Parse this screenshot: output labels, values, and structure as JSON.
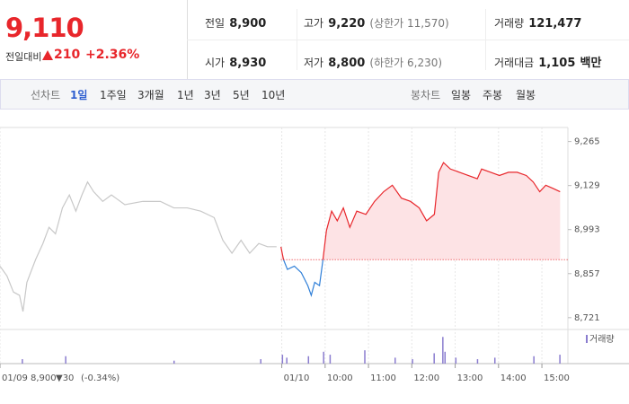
{
  "header": {
    "price": "9,110",
    "change_label": "전일대비",
    "change": "210",
    "change_rate": "+2.36%",
    "stats": [
      {
        "label": "전일",
        "value": "8,900"
      },
      {
        "label": "고가",
        "value": "9,220",
        "note": "(상한가 11,570)"
      },
      {
        "label": "거래량",
        "value": "121,477"
      },
      {
        "label": "시가",
        "value": "8,930"
      },
      {
        "label": "저가",
        "value": "8,800",
        "note": "(하한가 6,230)"
      },
      {
        "label": "거래대금",
        "value": "1,105",
        "unit": "백만"
      }
    ]
  },
  "tabs": {
    "line_chart": {
      "label": "선차트",
      "options": [
        "1일",
        "1주일",
        "3개월",
        "1년",
        "3년",
        "5년",
        "10년"
      ]
    },
    "candle_chart": {
      "label": "봉차트",
      "options": [
        "일봉",
        "주봉",
        "월봉"
      ]
    }
  },
  "status": {
    "price": "8,900",
    "change": "▼30",
    "rate": "(-0.34%)"
  },
  "chart_data": {
    "type": "line",
    "xlim": [
      0,
      13.1
    ],
    "ylim": [
      8690,
      9300
    ],
    "xticks": [
      {
        "value": 0,
        "label": "01/09"
      },
      {
        "value": 6.5,
        "label": "01/10"
      },
      {
        "value": 7.5,
        "label": "10:00"
      },
      {
        "value": 8.5,
        "label": "11:00"
      },
      {
        "value": 9.5,
        "label": "12:00"
      },
      {
        "value": 10.5,
        "label": "13:00"
      },
      {
        "value": 11.5,
        "label": "14:00"
      },
      {
        "value": 12.5,
        "label": "15:00"
      }
    ],
    "yticks": [
      {
        "value": 9265,
        "label": "9,265"
      },
      {
        "value": 9129,
        "label": "9,129"
      },
      {
        "value": 8993,
        "label": "8,993"
      },
      {
        "value": 8857,
        "label": "8,857"
      },
      {
        "value": 8721,
        "label": "8,721"
      }
    ],
    "reference": 8900,
    "reference_color": "#e8262b",
    "series": [
      {
        "color": "#c8c8c8",
        "x": [
          0,
          0.16,
          0.31,
          0.45,
          0.53,
          0.62,
          0.82,
          0.99,
          1.13,
          1.28,
          1.44,
          1.6,
          1.75,
          1.89,
          2.02,
          2.16,
          2.37,
          2.57,
          2.88,
          3.29,
          3.7,
          4.01,
          4.32,
          4.63,
          4.94,
          5.14,
          5.35,
          5.56,
          5.76,
          5.97,
          6.17,
          6.38
        ],
        "values": [
          8880,
          8850,
          8800,
          8790,
          8740,
          8830,
          8900,
          8950,
          9000,
          8980,
          9060,
          9100,
          9050,
          9100,
          9140,
          9110,
          9080,
          9100,
          9070,
          9080,
          9080,
          9060,
          9060,
          9050,
          9030,
          8960,
          8920,
          8960,
          8920,
          8950,
          8940,
          8940
        ]
      },
      {
        "color": "#e8262b",
        "down_color": "#2f7fd8",
        "fill": "#fde3e5",
        "x": [
          6.48,
          6.54,
          6.63,
          6.79,
          6.95,
          7.1,
          7.18,
          7.26,
          7.37,
          7.45,
          7.53,
          7.65,
          7.78,
          7.92,
          8.07,
          8.23,
          8.44,
          8.64,
          8.85,
          9.05,
          9.26,
          9.47,
          9.67,
          9.84,
          10.02,
          10.12,
          10.23,
          10.39,
          10.6,
          10.8,
          11.01,
          11.11,
          11.32,
          11.52,
          11.73,
          11.93,
          12.14,
          12.3,
          12.45,
          12.59,
          12.76,
          12.92
        ],
        "values": [
          8940,
          8900,
          8870,
          8880,
          8860,
          8820,
          8790,
          8830,
          8820,
          8900,
          8990,
          9050,
          9020,
          9060,
          9000,
          9050,
          9040,
          9080,
          9110,
          9130,
          9090,
          9080,
          9060,
          9020,
          9040,
          9170,
          9200,
          9180,
          9170,
          9160,
          9150,
          9180,
          9170,
          9160,
          9170,
          9170,
          9160,
          9140,
          9110,
          9130,
          9120,
          9110
        ]
      }
    ],
    "volume": {
      "name": "거래량",
      "color": "#8a7ccf",
      "vlim": [
        0,
        100
      ],
      "x": [
        0.5,
        1.5,
        4.0,
        6.0,
        6.5,
        6.6,
        7.1,
        7.45,
        7.6,
        8.4,
        9.1,
        9.5,
        10.0,
        10.2,
        10.25,
        10.5,
        11.0,
        11.4,
        12.3,
        12.9
      ],
      "values": [
        15,
        25,
        10,
        15,
        30,
        20,
        25,
        40,
        30,
        45,
        20,
        15,
        35,
        90,
        40,
        20,
        15,
        20,
        25,
        30
      ]
    }
  }
}
